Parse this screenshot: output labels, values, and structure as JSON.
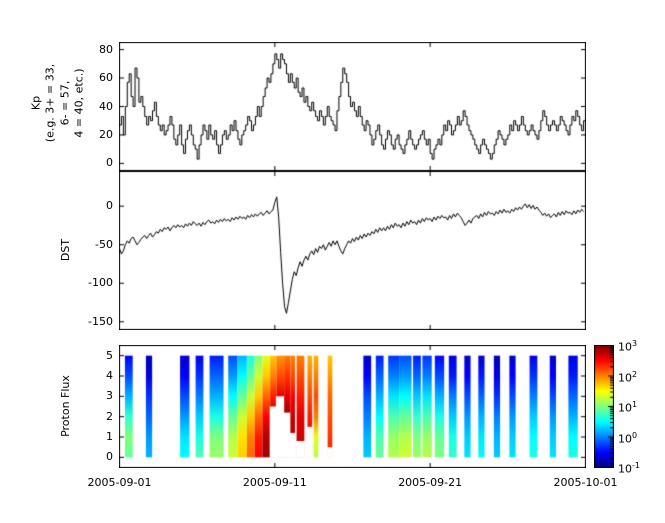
{
  "figure": {
    "background": "#ffffff",
    "line_color": "#000000"
  },
  "xaxis": {
    "range_days": [
      0,
      30
    ],
    "tick_days": [
      0,
      10,
      20,
      30
    ],
    "tick_labels": [
      "2005-09-01",
      "2005-09-11",
      "2005-09-21",
      "2005-10-01"
    ]
  },
  "chart_data": [
    {
      "type": "line",
      "name": "kp",
      "style": "step",
      "ylabel": "Kp\n(e.g. 3+ = 33,\n6- = 57,\n4 = 40, etc.)",
      "ylim": [
        -5,
        85
      ],
      "yticks": [
        0,
        20,
        40,
        60,
        80
      ],
      "ytick_labels": [
        "0",
        "20",
        "40",
        "60",
        "80"
      ],
      "sample_interval_hours": 3,
      "values": [
        27,
        33,
        20,
        40,
        57,
        63,
        47,
        40,
        67,
        60,
        43,
        47,
        40,
        33,
        27,
        33,
        30,
        37,
        43,
        33,
        27,
        23,
        27,
        20,
        23,
        27,
        33,
        27,
        17,
        13,
        20,
        27,
        13,
        7,
        17,
        23,
        27,
        20,
        13,
        10,
        3,
        13,
        20,
        27,
        23,
        17,
        27,
        20,
        17,
        23,
        13,
        7,
        13,
        20,
        23,
        17,
        20,
        27,
        23,
        30,
        23,
        17,
        13,
        20,
        23,
        27,
        33,
        30,
        23,
        27,
        33,
        40,
        33,
        40,
        47,
        53,
        60,
        57,
        63,
        70,
        77,
        73,
        67,
        77,
        73,
        70,
        63,
        57,
        63,
        57,
        53,
        60,
        50,
        47,
        53,
        43,
        47,
        40,
        37,
        43,
        37,
        33,
        30,
        37,
        33,
        27,
        33,
        40,
        33,
        30,
        27,
        23,
        37,
        47,
        57,
        67,
        63,
        57,
        47,
        40,
        43,
        37,
        33,
        40,
        33,
        27,
        23,
        30,
        27,
        20,
        13,
        17,
        23,
        27,
        20,
        13,
        10,
        17,
        23,
        20,
        13,
        10,
        17,
        20,
        13,
        10,
        7,
        13,
        17,
        23,
        17,
        13,
        10,
        13,
        17,
        20,
        23,
        17,
        13,
        17,
        7,
        3,
        10,
        13,
        17,
        13,
        20,
        27,
        23,
        30,
        27,
        20,
        23,
        27,
        33,
        27,
        30,
        37,
        33,
        27,
        23,
        20,
        17,
        13,
        10,
        7,
        13,
        17,
        13,
        10,
        7,
        3,
        7,
        13,
        17,
        23,
        20,
        17,
        13,
        17,
        20,
        27,
        23,
        30,
        27,
        23,
        27,
        33,
        27,
        23,
        20,
        23,
        27,
        23,
        20,
        17,
        23,
        30,
        37,
        33,
        27,
        23,
        27,
        30,
        27,
        23,
        27,
        33,
        30,
        27,
        23,
        20,
        27,
        33,
        30,
        37,
        33,
        27,
        23,
        30
      ]
    },
    {
      "type": "line",
      "name": "dst",
      "style": "line",
      "ylabel": "DST",
      "ylim": [
        -160,
        45
      ],
      "yticks": [
        0,
        -50,
        -100,
        -150
      ],
      "ytick_labels": [
        "0",
        "-50",
        "-100",
        "-150"
      ],
      "sample_interval_hours": 3,
      "values": [
        -55,
        -62,
        -58,
        -50,
        -45,
        -48,
        -42,
        -40,
        -45,
        -50,
        -47,
        -43,
        -40,
        -38,
        -42,
        -38,
        -35,
        -40,
        -37,
        -33,
        -35,
        -30,
        -33,
        -28,
        -30,
        -27,
        -32,
        -28,
        -25,
        -28,
        -24,
        -27,
        -25,
        -28,
        -23,
        -26,
        -22,
        -25,
        -20,
        -23,
        -25,
        -22,
        -26,
        -21,
        -24,
        -20,
        -18,
        -22,
        -20,
        -23,
        -18,
        -21,
        -17,
        -20,
        -16,
        -19,
        -17,
        -20,
        -15,
        -18,
        -14,
        -17,
        -13,
        -16,
        -14,
        -17,
        -12,
        -15,
        -11,
        -14,
        -10,
        -13,
        -10,
        -8,
        -12,
        -9,
        -6,
        -10,
        -7,
        -5,
        5,
        12,
        -15,
        -60,
        -100,
        -130,
        -139,
        -125,
        -110,
        -95,
        -85,
        -90,
        -80,
        -72,
        -78,
        -70,
        -65,
        -70,
        -62,
        -58,
        -63,
        -55,
        -60,
        -52,
        -55,
        -50,
        -57,
        -52,
        -47,
        -52,
        -45,
        -50,
        -45,
        -52,
        -58,
        -62,
        -55,
        -50,
        -45,
        -48,
        -42,
        -46,
        -40,
        -44,
        -38,
        -42,
        -36,
        -40,
        -35,
        -38,
        -33,
        -36,
        -30,
        -34,
        -28,
        -32,
        -28,
        -32,
        -26,
        -30,
        -24,
        -28,
        -22,
        -26,
        -24,
        -28,
        -22,
        -26,
        -20,
        -24,
        -18,
        -22,
        -20,
        -24,
        -18,
        -22,
        -16,
        -20,
        -15,
        -18,
        -16,
        -20,
        -14,
        -18,
        -13,
        -16,
        -12,
        -15,
        -14,
        -18,
        -12,
        -16,
        -10,
        -14,
        -9,
        -12,
        -15,
        -20,
        -25,
        -22,
        -18,
        -22,
        -16,
        -14,
        -12,
        -16,
        -10,
        -14,
        -8,
        -12,
        -7,
        -10,
        -9,
        -12,
        -7,
        -10,
        -5,
        -9,
        -4,
        -8,
        -6,
        -9,
        -4,
        -7,
        -2,
        -5,
        -1,
        -4,
        0,
        3,
        -2,
        2,
        -3,
        1,
        -4,
        -1,
        -5,
        -8,
        -12,
        -9,
        -13,
        -10,
        -15,
        -12,
        -10,
        -14,
        -8,
        -12,
        -7,
        -11,
        -6,
        -9,
        -8,
        -11,
        -6,
        -10,
        -5,
        -8,
        -4,
        -7
      ]
    },
    {
      "type": "heatmap",
      "name": "proton_flux",
      "ylabel": "Proton Flux",
      "ylim": [
        -0.5,
        5.5
      ],
      "yticks": [
        0,
        1,
        2,
        3,
        4,
        5
      ],
      "ytick_labels": [
        "0",
        "1",
        "2",
        "3",
        "4",
        "5"
      ],
      "colormap": "jet",
      "color_scale": "log",
      "clim_log10": [
        -1,
        3
      ],
      "gap_color": "#ffffff",
      "colorbar": {
        "tick_labels": [
          {
            "base": "10",
            "exp": "3"
          },
          {
            "base": "10",
            "exp": "2"
          },
          {
            "base": "10",
            "exp": "1"
          },
          {
            "base": "10",
            "exp": "0"
          },
          {
            "base": "10",
            "exp": "-1"
          }
        ],
        "tick_exponents": [
          3,
          2,
          1,
          0,
          -1
        ]
      },
      "stripes": [
        {
          "d0": 0.35,
          "d1": 0.85,
          "v": [
            0.9,
            1.0,
            0.7,
            0.2,
            -0.2,
            -0.5
          ]
        },
        {
          "d0": 1.7,
          "d1": 2.1,
          "v": [
            0.2,
            0.1,
            -0.1,
            -0.3,
            -0.6,
            -0.8
          ]
        },
        {
          "d0": 3.9,
          "d1": 4.5,
          "v": [
            0.5,
            0.4,
            0.1,
            -0.2,
            -0.5,
            -0.7
          ]
        },
        {
          "d0": 4.9,
          "d1": 5.4,
          "v": [
            0.8,
            0.6,
            0.3,
            0.0,
            -0.3,
            -0.6
          ]
        },
        {
          "d0": 5.8,
          "d1": 6.7,
          "v": [
            1.1,
            1.0,
            0.6,
            0.2,
            -0.1,
            -0.4
          ]
        },
        {
          "d0": 7.0,
          "d1": 7.6,
          "v": [
            1.3,
            1.2,
            0.9,
            0.5,
            0.1,
            -0.2
          ]
        },
        {
          "d0": 7.6,
          "d1": 8.2,
          "v": [
            1.7,
            1.6,
            1.3,
            0.9,
            0.5,
            0.2
          ]
        },
        {
          "d0": 8.2,
          "d1": 8.7,
          "v": [
            2.1,
            2.0,
            1.7,
            1.3,
            0.9,
            0.6
          ]
        },
        {
          "d0": 8.7,
          "d1": 9.2,
          "v": [
            2.5,
            2.4,
            2.1,
            1.7,
            1.3,
            1.0
          ]
        },
        {
          "d0": 9.2,
          "d1": 9.7,
          "v": [
            2.9,
            2.8,
            2.5,
            2.1,
            1.7,
            1.4
          ]
        },
        {
          "d0": 9.7,
          "d1": 10.1,
          "v": [
            3.0,
            3.0,
            2.8,
            2.4,
            2.0,
            1.7
          ],
          "ymin": 2.5
        },
        {
          "d0": 10.1,
          "d1": 10.6,
          "v": [
            3.0,
            3.0,
            2.9,
            2.6,
            2.2,
            1.9
          ],
          "ymin": 3.0
        },
        {
          "d0": 10.6,
          "d1": 11.0,
          "v": [
            3.0,
            3.0,
            2.9,
            2.6,
            2.3,
            2.0
          ],
          "ymin": 2.2
        },
        {
          "d0": 11.0,
          "d1": 11.3,
          "v": [
            2.9,
            2.8,
            2.7,
            2.5,
            2.2,
            2.0
          ],
          "ymin": 1.2
        },
        {
          "d0": 11.4,
          "d1": 11.9,
          "v": [
            2.8,
            2.7,
            2.6,
            2.4,
            2.2,
            2.0
          ],
          "ymin": 0.8
        },
        {
          "d0": 12.1,
          "d1": 12.4,
          "v": [
            2.6,
            2.5,
            2.4,
            2.2,
            2.0,
            1.8
          ],
          "ymin": 1.5
        },
        {
          "d0": 12.5,
          "d1": 12.8,
          "v": [
            1.2,
            1.4,
            2.0,
            2.2,
            2.0,
            1.8
          ]
        },
        {
          "d0": 13.4,
          "d1": 13.7,
          "v": [
            2.4,
            2.3,
            2.2,
            2.1,
            1.9,
            1.7
          ],
          "ymin": 0.5
        },
        {
          "d0": 15.7,
          "d1": 16.2,
          "v": [
            0.3,
            0.2,
            0.0,
            -0.2,
            -0.5,
            -0.7
          ]
        },
        {
          "d0": 16.5,
          "d1": 17.0,
          "v": [
            0.9,
            0.8,
            0.5,
            0.2,
            -0.1,
            -0.4
          ]
        },
        {
          "d0": 17.3,
          "d1": 18.0,
          "v": [
            1.2,
            1.1,
            0.8,
            0.4,
            0.0,
            -0.3
          ]
        },
        {
          "d0": 18.0,
          "d1": 18.8,
          "v": [
            1.3,
            1.2,
            0.9,
            0.5,
            0.1,
            -0.2
          ]
        },
        {
          "d0": 18.9,
          "d1": 19.4,
          "v": [
            1.1,
            1.0,
            0.7,
            0.3,
            -0.1,
            -0.4
          ]
        },
        {
          "d0": 19.5,
          "d1": 20.1,
          "v": [
            1.2,
            1.1,
            0.8,
            0.4,
            0.0,
            -0.3
          ]
        },
        {
          "d0": 20.3,
          "d1": 20.9,
          "v": [
            1.0,
            0.9,
            0.6,
            0.2,
            -0.2,
            -0.5
          ]
        },
        {
          "d0": 21.2,
          "d1": 21.7,
          "v": [
            0.7,
            0.6,
            0.3,
            0.0,
            -0.4,
            -0.6
          ]
        },
        {
          "d0": 22.2,
          "d1": 22.6,
          "v": [
            0.4,
            0.3,
            0.1,
            -0.2,
            -0.5,
            -0.7
          ]
        },
        {
          "d0": 23.1,
          "d1": 23.5,
          "v": [
            0.5,
            0.4,
            0.2,
            -0.1,
            -0.4,
            -0.7
          ]
        },
        {
          "d0": 24.1,
          "d1": 24.5,
          "v": [
            0.3,
            0.2,
            0.0,
            -0.3,
            -0.6,
            -0.8
          ]
        },
        {
          "d0": 25.1,
          "d1": 25.5,
          "v": [
            0.4,
            0.3,
            0.1,
            -0.2,
            -0.5,
            -0.7
          ]
        },
        {
          "d0": 26.4,
          "d1": 26.9,
          "v": [
            0.6,
            0.5,
            0.3,
            0.0,
            -0.3,
            -0.6
          ]
        },
        {
          "d0": 27.7,
          "d1": 28.1,
          "v": [
            0.4,
            0.3,
            0.1,
            -0.2,
            -0.5,
            -0.7
          ]
        },
        {
          "d0": 28.9,
          "d1": 29.5,
          "v": [
            0.6,
            0.5,
            0.2,
            -0.1,
            -0.4,
            -0.6
          ]
        }
      ]
    }
  ]
}
